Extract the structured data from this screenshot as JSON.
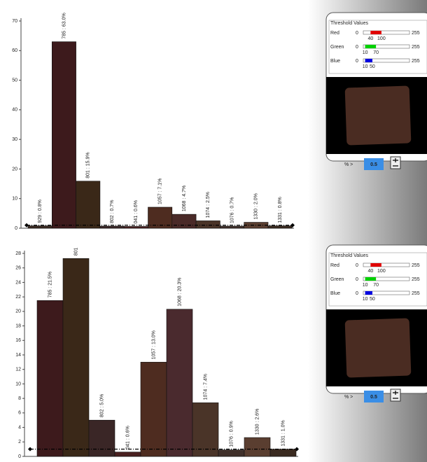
{
  "chart_data": [
    {
      "type": "bar",
      "categories": [
        "929",
        "785",
        "801",
        "802",
        "041",
        "1057",
        "1068",
        "1074",
        "1076",
        "1330",
        "1331"
      ],
      "values": [
        0.8,
        63.0,
        15.9,
        0.7,
        0.6,
        7.1,
        4.7,
        2.5,
        0.7,
        2.0,
        0.8
      ],
      "value_labels": [
        "929 : 0.8%",
        "785 : 63.0%",
        "801 : 15.9%",
        "802 : 0.7%",
        "041 : 0.6%",
        "1057 : 7.1%",
        "1068 : 4.7%",
        "1074 : 2.5%",
        "1076 : 0.7%",
        "1330 : 2.0%",
        "1331 : 0.8%"
      ],
      "colors": [
        "#3a2a22",
        "#3d1a1c",
        "#3a2818",
        "#3a2626",
        "#4a2020",
        "#4e2c20",
        "#4a2a28",
        "#4a3428",
        "#40302a",
        "#5a3e30",
        "#3a2a20"
      ],
      "threshold": 1,
      "ylim": [
        0,
        70
      ],
      "yticks": [
        0,
        10,
        20,
        30,
        40,
        50,
        60,
        70
      ]
    },
    {
      "type": "bar",
      "categories": [
        "785",
        "801",
        "802",
        "041",
        "1057",
        "1068",
        "1074",
        "1076",
        "1330",
        "1331"
      ],
      "values": [
        21.5,
        27.3,
        5.0,
        0.6,
        13.0,
        20.3,
        7.4,
        0.9,
        2.6,
        1.0
      ],
      "value_labels": [
        "785 : 21.5%",
        "801",
        "802 : 5.0%",
        "041 : 0.6%",
        "1057 : 13.0%",
        "1068 : 20.3%",
        "1074 : 7.4%",
        "1076 : 0.9%",
        "1330 : 2.6%",
        "1331 : 1.0%"
      ],
      "colors": [
        "#3d1a1c",
        "#3a2818",
        "#3a2626",
        "#4a2020",
        "#4e2c20",
        "#4a2a2e",
        "#4a3428",
        "#40302a",
        "#5a3e30",
        "#3a2a20"
      ],
      "threshold": 1,
      "ylim": [
        0,
        28
      ],
      "yticks": [
        0,
        2,
        4,
        6,
        8,
        10,
        12,
        14,
        16,
        18,
        20,
        22,
        24,
        26,
        28
      ]
    }
  ],
  "panels": [
    {
      "title": "Threshold Values",
      "rows": [
        {
          "name": "Red",
          "min": 0,
          "max": 255,
          "low": 40,
          "high": 100,
          "color": "#e00000"
        },
        {
          "name": "Green",
          "min": 0,
          "max": 255,
          "low": 10,
          "high": 70,
          "color": "#00d000"
        },
        {
          "name": "Blue",
          "min": 0,
          "max": 255,
          "low": 10,
          "high": 50,
          "color": "#0000e0"
        }
      ],
      "percent_label": "% >",
      "percent_value": "0.5"
    },
    {
      "title": "Threshold Values",
      "rows": [
        {
          "name": "Red",
          "min": 0,
          "max": 255,
          "low": 40,
          "high": 100,
          "color": "#e00000"
        },
        {
          "name": "Green",
          "min": 0,
          "max": 255,
          "low": 10,
          "high": 70,
          "color": "#00d000"
        },
        {
          "name": "Blue",
          "min": 0,
          "max": 255,
          "low": 10,
          "high": 50,
          "color": "#0000e0"
        }
      ],
      "percent_label": "% >",
      "percent_value": "0.5"
    }
  ]
}
